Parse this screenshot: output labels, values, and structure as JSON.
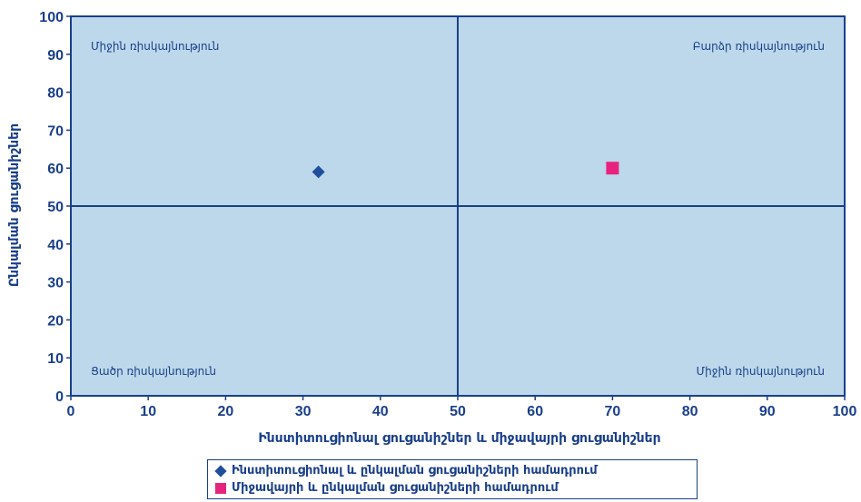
{
  "chart_data": {
    "type": "scatter",
    "xlabel": "Ինստիտուցիոնալ ցուցանիշներ և միջավայրի ցուցանիշներ",
    "ylabel": "Ընկալման ցուցանիշներ",
    "xlim": [
      0,
      100
    ],
    "ylim": [
      0,
      100
    ],
    "x_ticks": [
      "0",
      "10",
      "20",
      "30",
      "40",
      "50",
      "60",
      "70",
      "80",
      "90",
      "100"
    ],
    "y_ticks": [
      "0",
      "10",
      "20",
      "30",
      "40",
      "50",
      "60",
      "70",
      "80",
      "90",
      "100"
    ],
    "grid": false,
    "quadrant_dividers": {
      "x": 50,
      "y": 50
    },
    "quadrant_labels": {
      "top_left": "Միջին ռիսկայնություն",
      "top_right": "Բարձր ռիսկայնություն",
      "bottom_left": "Ցածր ռիսկայնություն",
      "bottom_right": "Միջին ռիսկայնություն"
    },
    "series": [
      {
        "name": "Ինստիտուցիոնալ և ընկալման ցուցանիշների համադրում",
        "marker": "diamond",
        "color": "#1f4e9c",
        "x": [
          32
        ],
        "y": [
          59
        ]
      },
      {
        "name": "Միջավայրի և ընկալման ցուցանիշների համադրում",
        "marker": "square",
        "color": "#e8237e",
        "x": [
          70
        ],
        "y": [
          60
        ]
      }
    ],
    "legend_position": "bottom-center",
    "plot_background": "#bcd8ea",
    "axis_color": "#1a3f8a"
  }
}
